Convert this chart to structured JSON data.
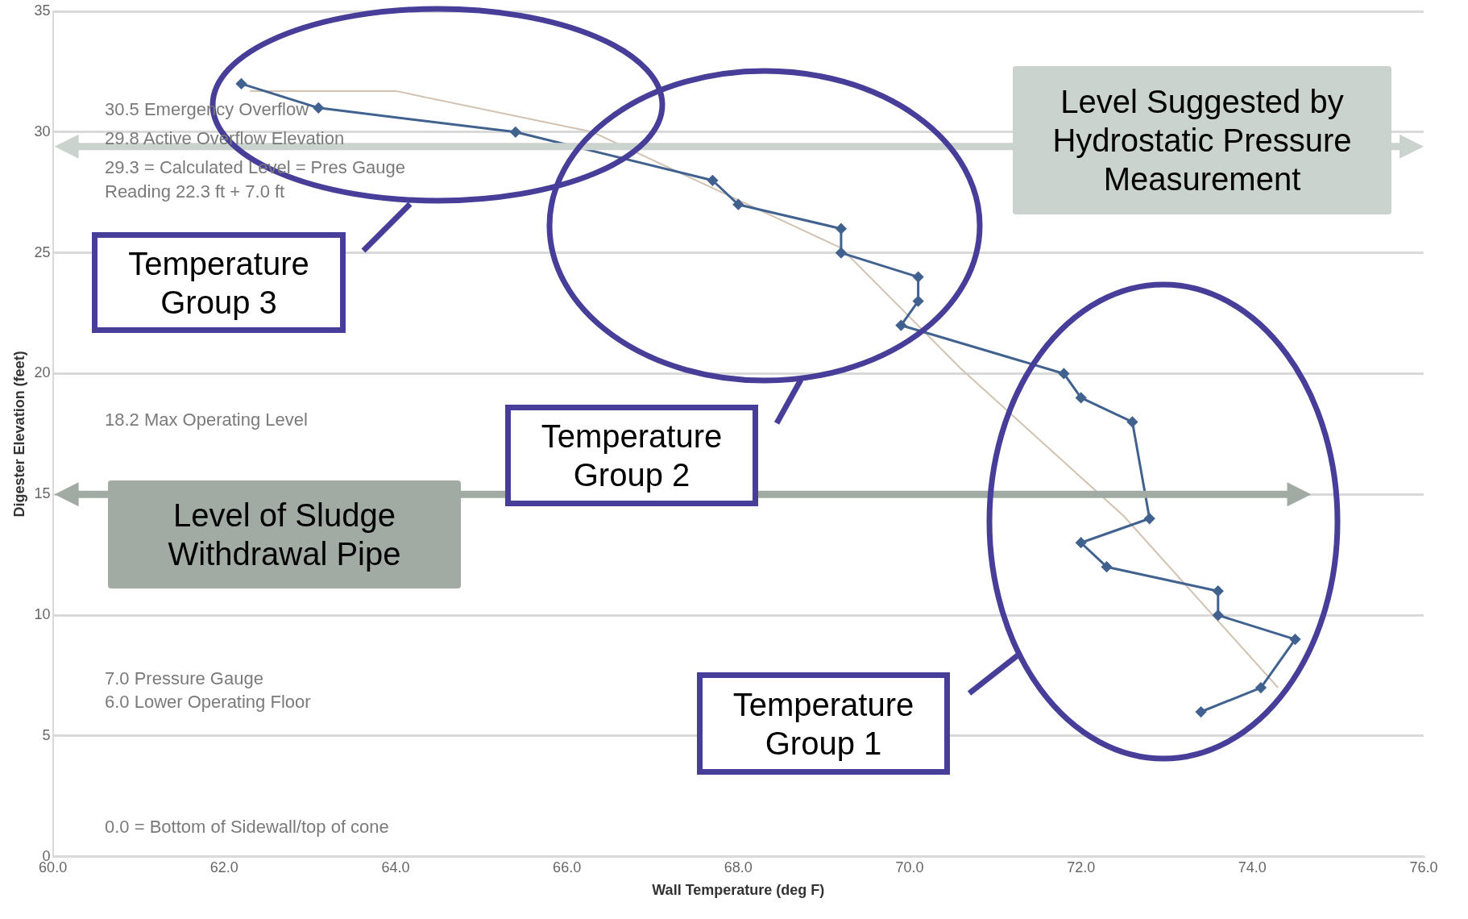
{
  "chart_data": {
    "type": "line",
    "xlabel": "Wall Temperature (deg F)",
    "ylabel": "Digester Elevation (feet)",
    "xlim": [
      60,
      76
    ],
    "xticks": [
      {
        "value": 60,
        "label": "60.0"
      },
      {
        "value": 62,
        "label": "62.0"
      },
      {
        "value": 64,
        "label": "64.0"
      },
      {
        "value": 66,
        "label": "66.0"
      },
      {
        "value": 68,
        "label": "68.0"
      },
      {
        "value": 70,
        "label": "70.0"
      },
      {
        "value": 72,
        "label": "72.0"
      },
      {
        "value": 74,
        "label": "74.0"
      },
      {
        "value": 76,
        "label": "76.0"
      }
    ],
    "ylim": [
      0,
      35
    ],
    "yticks": [
      0,
      5,
      10,
      15,
      20,
      25,
      30,
      35
    ],
    "grid": "y",
    "legend": false,
    "marker": "diamond",
    "series": [
      {
        "color": "#41618f",
        "x": [
          62.2,
          63.1,
          65.4,
          67.7,
          68.0,
          69.2,
          69.2,
          70.1,
          70.1,
          69.9,
          71.8,
          72.0,
          72.6,
          72.8,
          72.0,
          72.3,
          73.6,
          73.6,
          74.5,
          74.1,
          73.4
        ],
        "values": [
          32,
          31,
          30,
          28,
          27,
          26,
          25,
          24,
          23,
          22,
          20,
          19,
          18,
          14,
          13,
          12,
          11,
          10,
          9,
          7,
          6
        ]
      },
      {
        "type": "line",
        "marker": "none",
        "color": "#d2c2b2",
        "x": [
          62.3,
          64.0,
          66.3,
          69.2,
          70.6,
          72.5,
          74.3
        ],
        "values": [
          31.7,
          31.7,
          30.0,
          25.2,
          20.2,
          14.1,
          7.0
        ]
      }
    ],
    "ref_lines": [
      {
        "axis": "y",
        "value": 29.4,
        "label": "Level Suggested by Hydrostatic Pressure Measurement",
        "color": "#cbd3ce"
      },
      {
        "axis": "y",
        "value": 15,
        "label": "Level of Sludge Withdrawal Pipe",
        "color": "#a1aba3"
      }
    ],
    "annotations": [
      "30.5 Emergency Overflow",
      "29.8 Active Overflow Elevation",
      "29.3 = Calculated Level = Pres Gauge Reading 22.3 ft + 7.0 ft",
      "18.2 Max Operating Level",
      "7.0 Pressure Gauge",
      "6.0 Lower Operating Floor",
      "0.0 = Bottom of Sidewall/top of cone",
      "Temperature Group 3",
      "Temperature Group 2",
      "Temperature Group 1"
    ]
  }
}
